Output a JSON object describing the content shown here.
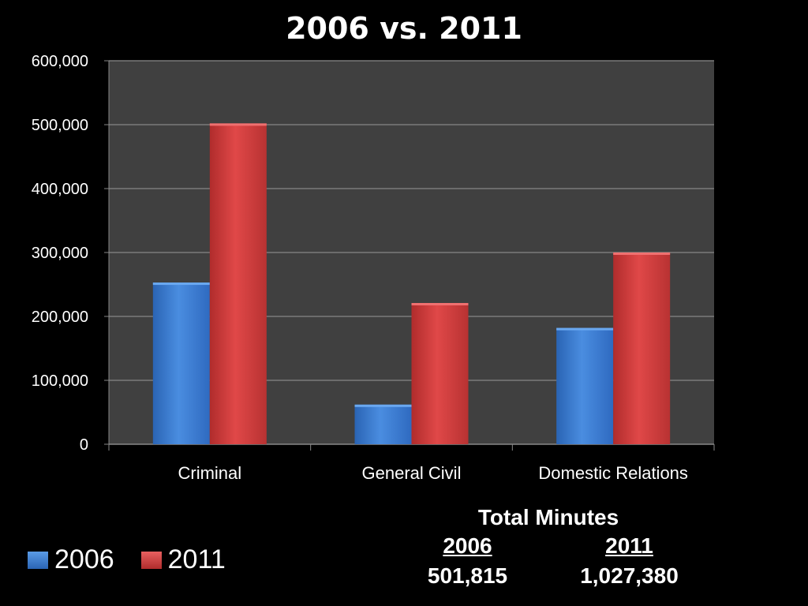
{
  "chart_data": {
    "type": "bar",
    "title": "2006 vs. 2011",
    "categories": [
      "Criminal",
      "General Civil",
      "Domestic Relations"
    ],
    "series": [
      {
        "name": "2006",
        "values": [
          253000,
          62000,
          182000
        ],
        "color": "#3b7fd6"
      },
      {
        "name": "2011",
        "values": [
          502000,
          221000,
          300000
        ],
        "color": "#d9403f"
      }
    ],
    "ylim": [
      0,
      600000
    ],
    "yticks": [
      "0",
      "100,000",
      "200,000",
      "300,000",
      "400,000",
      "500,000",
      "600,000"
    ],
    "ytick_values": [
      0,
      100000,
      200000,
      300000,
      400000,
      500000,
      600000
    ],
    "grid": true,
    "legend_position": "bottom-left",
    "plot_background": "#404040"
  },
  "totals": {
    "header": "Total Minutes",
    "columns": [
      {
        "label": "2006",
        "value": "501,815"
      },
      {
        "label": "2011",
        "value": "1,027,380"
      }
    ]
  }
}
